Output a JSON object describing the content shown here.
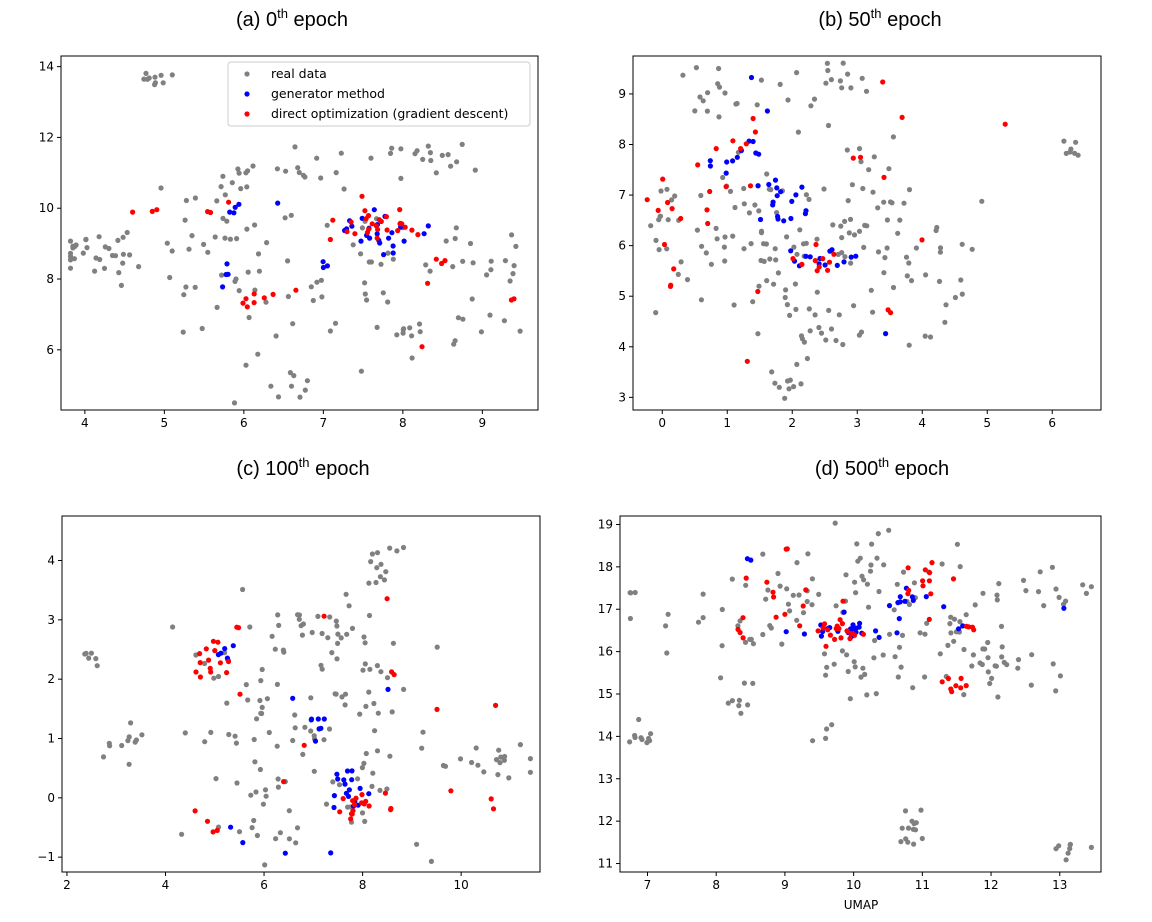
{
  "colors": {
    "real": "#808080",
    "generator": "#0000ff",
    "direct": "#ff0000",
    "axes": "#000000"
  },
  "legend": {
    "real": "real data",
    "generator": "generator method",
    "direct": "direct optimization (gradient descent)"
  },
  "chart_data": [
    {
      "type": "scatter",
      "title_prefix": "(a) 0",
      "title_sup": "th",
      "title_suffix": " epoch",
      "xlabel": "",
      "xlim": [
        3.7,
        9.7
      ],
      "ylim": [
        4.3,
        14.3
      ],
      "xticks": [
        4,
        5,
        6,
        7,
        8,
        9
      ],
      "yticks": [
        6,
        8,
        10,
        12,
        14
      ],
      "legend_location": "top-right",
      "series": [
        {
          "name": "real data",
          "clusters": [
            [
              4.0,
              8.8,
              0.3,
              0.25,
              25
            ],
            [
              4.9,
              13.65,
              0.15,
              0.1,
              10
            ],
            [
              6.6,
              11.0,
              0.3,
              0.15,
              8
            ],
            [
              5.8,
              10.9,
              0.2,
              0.15,
              6
            ],
            [
              7.65,
              11.5,
              0.45,
              0.12,
              12
            ],
            [
              8.5,
              11.45,
              0.25,
              0.2,
              8
            ],
            [
              6.6,
              5.0,
              0.15,
              0.22,
              8
            ],
            [
              5.5,
              9.0,
              0.6,
              1.1,
              40
            ],
            [
              7.3,
              8.3,
              1.0,
              1.5,
              60
            ],
            [
              9.1,
              8.1,
              0.3,
              0.8,
              14
            ],
            [
              8.3,
              6.7,
              0.3,
              0.3,
              8
            ]
          ]
        },
        {
          "name": "generator method",
          "clusters": [
            [
              5.9,
              10.0,
              0.08,
              0.08,
              4
            ],
            [
              6.45,
              10.1,
              0.02,
              0.02,
              1
            ],
            [
              7.6,
              9.35,
              0.35,
              0.3,
              25
            ],
            [
              7.05,
              8.4,
              0.05,
              0.05,
              3
            ],
            [
              5.9,
              7.9,
              0.08,
              0.4,
              4
            ]
          ]
        },
        {
          "name": "direct optimization (gradient descent)",
          "clusters": [
            [
              7.75,
              9.5,
              0.25,
              0.2,
              25
            ],
            [
              5.6,
              9.9,
              0.15,
              0.12,
              3
            ],
            [
              4.6,
              9.95,
              0.05,
              0.05,
              1
            ],
            [
              4.85,
              10.1,
              0.05,
              0.1,
              2
            ],
            [
              6.0,
              7.2,
              0.25,
              0.25,
              7
            ],
            [
              8.4,
              8.4,
              0.1,
              0.2,
              4
            ],
            [
              9.4,
              7.35,
              0.05,
              0.2,
              2
            ],
            [
              8.25,
              6.1,
              0.02,
              0.02,
              1
            ],
            [
              7.45,
              10.35,
              0.02,
              0.02,
              1
            ],
            [
              7.05,
              9.1,
              0.05,
              0.05,
              1
            ],
            [
              6.6,
              7.65,
              0.05,
              0.05,
              1
            ]
          ]
        }
      ]
    },
    {
      "type": "scatter",
      "title_prefix": "(b) 50",
      "title_sup": "th",
      "title_suffix": " epoch",
      "xlabel": "",
      "xlim": [
        -0.45,
        6.75
      ],
      "ylim": [
        2.75,
        9.75
      ],
      "xticks": [
        0,
        1,
        2,
        3,
        4,
        5,
        6
      ],
      "yticks": [
        3,
        4,
        5,
        6,
        7,
        8,
        9
      ],
      "series": [
        {
          "name": "real data",
          "clusters": [
            [
              0.9,
              8.9,
              0.35,
              0.3,
              16
            ],
            [
              2.7,
              9.1,
              0.25,
              0.3,
              16
            ],
            [
              6.3,
              7.9,
              0.1,
              0.1,
              7
            ],
            [
              1.9,
              3.2,
              0.1,
              0.25,
              8
            ],
            [
              1.5,
              6.2,
              0.7,
              1.2,
              70
            ],
            [
              3.2,
              6.4,
              0.6,
              0.9,
              45
            ],
            [
              4.3,
              5.6,
              0.3,
              0.6,
              18
            ],
            [
              0.1,
              6.5,
              0.25,
              0.4,
              12
            ],
            [
              2.5,
              4.5,
              0.5,
              0.5,
              22
            ]
          ]
        },
        {
          "name": "generator method",
          "clusters": [
            [
              1.25,
              7.7,
              0.25,
              0.3,
              14
            ],
            [
              1.95,
              6.8,
              0.2,
              0.25,
              15
            ],
            [
              2.5,
              5.8,
              0.25,
              0.15,
              14
            ],
            [
              1.4,
              9.3,
              0.02,
              0.02,
              1
            ],
            [
              3.45,
              4.25,
              0.02,
              0.02,
              1
            ],
            [
              1.5,
              8.6,
              0.05,
              0.05,
              1
            ]
          ]
        },
        {
          "name": "direct optimization (gradient descent)",
          "clusters": [
            [
              0.0,
              7.1,
              0.1,
              0.35,
              6
            ],
            [
              0.15,
              5.3,
              0.05,
              0.15,
              3
            ],
            [
              0.7,
              7.2,
              0.3,
              0.6,
              8
            ],
            [
              1.3,
              8.0,
              0.15,
              0.3,
              5
            ],
            [
              2.5,
              5.7,
              0.3,
              0.2,
              10
            ],
            [
              3.0,
              7.7,
              0.05,
              0.05,
              2
            ],
            [
              3.4,
              9.2,
              0.02,
              0.02,
              1
            ],
            [
              3.7,
              8.55,
              0.02,
              0.02,
              1
            ],
            [
              5.3,
              8.4,
              0.02,
              0.02,
              1
            ],
            [
              3.5,
              4.6,
              0.02,
              0.1,
              2
            ],
            [
              4.0,
              6.1,
              0.02,
              0.02,
              1
            ],
            [
              1.3,
              3.7,
              0.02,
              0.02,
              1
            ],
            [
              1.5,
              5.1,
              0.05,
              0.05,
              1
            ],
            [
              3.4,
              7.35,
              0.02,
              0.02,
              1
            ]
          ]
        }
      ]
    },
    {
      "type": "scatter",
      "title_prefix": "(c) 100",
      "title_sup": "th",
      "title_suffix": " epoch",
      "xlabel": "",
      "xlim": [
        1.9,
        11.6
      ],
      "ylim": [
        -1.25,
        4.75
      ],
      "xticks": [
        2,
        4,
        6,
        8,
        10
      ],
      "yticks": [
        -1,
        0,
        1,
        2,
        3,
        4
      ],
      "series": [
        {
          "name": "real data",
          "clusters": [
            [
              2.5,
              2.3,
              0.1,
              0.1,
              6
            ],
            [
              3.2,
              0.9,
              0.2,
              0.2,
              10
            ],
            [
              8.5,
              4.0,
              0.3,
              0.35,
              14
            ],
            [
              6.7,
              2.9,
              0.2,
              0.15,
              8
            ],
            [
              10.6,
              0.6,
              0.5,
              0.15,
              18
            ],
            [
              5.8,
              1.4,
              0.8,
              0.9,
              55
            ],
            [
              8.0,
              1.1,
              0.8,
              1.0,
              55
            ],
            [
              6.0,
              -0.3,
              0.6,
              0.3,
              16
            ],
            [
              7.6,
              2.7,
              0.2,
              0.2,
              8
            ]
          ]
        },
        {
          "name": "generator method",
          "clusters": [
            [
              5.1,
              2.45,
              0.15,
              0.1,
              6
            ],
            [
              7.1,
              1.2,
              0.15,
              0.2,
              7
            ],
            [
              7.7,
              0.1,
              0.15,
              0.2,
              16
            ],
            [
              6.4,
              -0.9,
              0.02,
              0.02,
              1
            ],
            [
              7.35,
              -0.95,
              0.02,
              0.02,
              1
            ],
            [
              5.6,
              -0.75,
              0.02,
              0.02,
              1
            ],
            [
              5.3,
              -0.5,
              0.02,
              0.02,
              1
            ],
            [
              8.55,
              1.85,
              0.02,
              0.02,
              1
            ],
            [
              6.6,
              1.65,
              0.02,
              0.02,
              1
            ],
            [
              8.2,
              0.05,
              0.05,
              0.05,
              1
            ]
          ]
        },
        {
          "name": "direct optimization (gradient descent)",
          "clusters": [
            [
              5.0,
              2.4,
              0.25,
              0.2,
              14
            ],
            [
              7.8,
              -0.1,
              0.2,
              0.1,
              14
            ],
            [
              4.6,
              -0.2,
              0.02,
              0.02,
              1
            ],
            [
              5.0,
              -0.5,
              0.05,
              0.1,
              3
            ],
            [
              8.5,
              3.35,
              0.02,
              0.02,
              1
            ],
            [
              7.2,
              3.05,
              0.02,
              0.02,
              1
            ],
            [
              8.6,
              2.1,
              0.05,
              0.05,
              2
            ],
            [
              9.5,
              1.5,
              0.02,
              0.02,
              1
            ],
            [
              10.7,
              1.55,
              0.02,
              0.02,
              1
            ],
            [
              10.6,
              -0.15,
              0.05,
              0.05,
              2
            ],
            [
              9.8,
              0.1,
              0.02,
              0.02,
              1
            ],
            [
              5.5,
              2.9,
              0.05,
              0.05,
              2
            ],
            [
              5.5,
              1.75,
              0.02,
              0.02,
              1
            ],
            [
              8.5,
              -0.1,
              0.1,
              0.1,
              3
            ],
            [
              6.9,
              1.0,
              0.05,
              0.05,
              1
            ],
            [
              6.4,
              0.3,
              0.02,
              0.02,
              1
            ]
          ]
        }
      ]
    },
    {
      "type": "scatter",
      "title_prefix": "(d) 500",
      "title_sup": "th",
      "title_suffix": " epoch",
      "xlabel": "UMAP",
      "xlim": [
        6.6,
        13.6
      ],
      "ylim": [
        10.8,
        19.2
      ],
      "xticks": [
        7,
        8,
        9,
        10,
        11,
        12,
        13
      ],
      "yticks": [
        11,
        12,
        13,
        14,
        15,
        16,
        17,
        18,
        19
      ],
      "series": [
        {
          "name": "real data",
          "clusters": [
            [
              7.0,
              13.95,
              0.15,
              0.15,
              10
            ],
            [
              6.8,
              17.4,
              0.03,
              0.03,
              3
            ],
            [
              10.85,
              11.9,
              0.15,
              0.25,
              14
            ],
            [
              13.1,
              11.35,
              0.2,
              0.12,
              8
            ],
            [
              12.8,
              17.5,
              0.35,
              0.4,
              14
            ],
            [
              8.3,
              14.8,
              0.2,
              0.1,
              6
            ],
            [
              9.6,
              14.05,
              0.1,
              0.1,
              4
            ],
            [
              8.7,
              16.6,
              0.8,
              0.6,
              40
            ],
            [
              10.0,
              17.8,
              0.7,
              0.5,
              40
            ],
            [
              11.3,
              16.3,
              0.6,
              0.6,
              40
            ],
            [
              12.3,
              15.7,
              0.4,
              0.3,
              16
            ],
            [
              10.1,
              15.5,
              0.5,
              0.4,
              15
            ]
          ]
        },
        {
          "name": "generator method",
          "clusters": [
            [
              9.9,
              16.5,
              0.3,
              0.1,
              24
            ],
            [
              10.5,
              17.2,
              0.4,
              0.2,
              12
            ],
            [
              11.6,
              16.6,
              0.05,
              0.05,
              2
            ],
            [
              13.1,
              17.0,
              0.02,
              0.02,
              1
            ],
            [
              8.45,
              18.15,
              0.05,
              0.05,
              2
            ]
          ]
        },
        {
          "name": "direct optimization (gradient descent)",
          "clusters": [
            [
              9.8,
              16.4,
              0.35,
              0.15,
              20
            ],
            [
              11.1,
              17.4,
              0.25,
              0.3,
              12
            ],
            [
              11.3,
              15.2,
              0.2,
              0.15,
              8
            ],
            [
              8.4,
              16.6,
              0.1,
              0.2,
              4
            ],
            [
              8.8,
              17.2,
              0.2,
              0.35,
              6
            ],
            [
              11.75,
              16.5,
              0.1,
              0.1,
              4
            ],
            [
              9.5,
              17.0,
              0.2,
              0.2,
              3
            ],
            [
              9.05,
              18.4,
              0.05,
              0.02,
              2
            ]
          ]
        }
      ]
    }
  ]
}
